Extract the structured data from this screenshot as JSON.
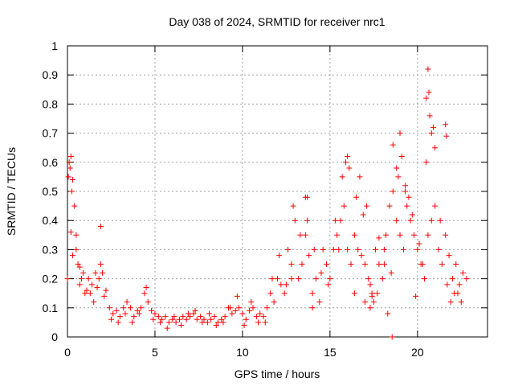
{
  "chart_data": {
    "type": "scatter",
    "title": "Day 038 of 2024, SRMTID for receiver nrc1",
    "xlabel": "GPS time / hours",
    "ylabel": "SRMTID / TECUs",
    "xlim": [
      0,
      24
    ],
    "ylim": [
      0,
      1
    ],
    "xticks": [
      0,
      5,
      10,
      15,
      20
    ],
    "xtick_labels": [
      "0",
      "5",
      "10",
      "15",
      "20"
    ],
    "yticks": [
      0,
      0.1,
      0.2,
      0.3,
      0.4,
      0.5,
      0.6,
      0.7,
      0.8,
      0.9,
      1
    ],
    "ytick_labels": [
      "0",
      "0.1",
      "0.2",
      "0.3",
      "0.4",
      "0.5",
      "0.6",
      "0.7",
      "0.8",
      "0.9",
      "1"
    ],
    "grid": true,
    "marker": "plus",
    "marker_color": "#ff0000",
    "series": [
      {
        "name": "SRMTID",
        "x": [
          0.0,
          0.1,
          0.2,
          0.3,
          0.4,
          0.5,
          0.6,
          0.7,
          0.8,
          0.9,
          1.0,
          1.2,
          1.4,
          1.6,
          1.8,
          2.0,
          2.2,
          2.4,
          2.6,
          2.8,
          3.0,
          3.2,
          3.4,
          3.6,
          3.8,
          4.0,
          4.2,
          4.4,
          4.6,
          4.8,
          5.0,
          5.2,
          5.4,
          5.6,
          5.8,
          6.0,
          6.2,
          6.4,
          6.6,
          6.8,
          7.0,
          7.2,
          7.4,
          7.6,
          7.8,
          8.0,
          8.2,
          8.4,
          8.6,
          8.8,
          9.0,
          9.2,
          9.4,
          9.6,
          9.8,
          10.0,
          10.2,
          10.4,
          10.6,
          10.8,
          11.0,
          11.2,
          11.4,
          11.6,
          11.8,
          12.0,
          12.2,
          12.4,
          12.6,
          12.8,
          13.0,
          13.2,
          13.4,
          13.6,
          13.8,
          14.0,
          14.2,
          14.4,
          14.6,
          14.8,
          15.0,
          15.2,
          15.4,
          15.6,
          15.8,
          16.0,
          16.2,
          16.4,
          16.6,
          16.8,
          17.0,
          17.2,
          17.4,
          17.6,
          17.8,
          18.0,
          18.2,
          18.4,
          18.6,
          18.8,
          19.0,
          19.2,
          19.4,
          19.6,
          19.8,
          20.0,
          20.2,
          20.4,
          20.6,
          20.8,
          21.0,
          21.2,
          21.4,
          21.6,
          21.8,
          22.0,
          22.2,
          22.4,
          22.6,
          22.8,
          0.05,
          0.15,
          0.25,
          0.2,
          0.3,
          0.5,
          0.7,
          1.1,
          1.3,
          1.5,
          1.7,
          1.9,
          2.1,
          2.5,
          2.9,
          3.3,
          3.7,
          4.1,
          4.5,
          4.9,
          5.3,
          5.7,
          6.1,
          6.5,
          6.9,
          7.3,
          7.7,
          8.1,
          8.5,
          8.9,
          9.3,
          9.7,
          10.1,
          10.5,
          10.9,
          11.3,
          11.7,
          12.1,
          12.5,
          12.9,
          13.3,
          13.7,
          14.1,
          14.5,
          14.9,
          15.3,
          15.7,
          16.1,
          16.5,
          16.9,
          17.3,
          17.7,
          18.1,
          18.5,
          18.9,
          19.3,
          19.7,
          20.1,
          20.5,
          20.9,
          21.3,
          21.7,
          22.1,
          22.5,
          1.9,
          13.6,
          13.7,
          15.9,
          16.0,
          16.7,
          17.1,
          17.8,
          18.1,
          18.6,
          18.8,
          19.0,
          19.1,
          19.3,
          19.5,
          20.5,
          20.6,
          20.65,
          20.7,
          20.8,
          21.0,
          21.6,
          21.65,
          12.8,
          14.0,
          15.5,
          16.4,
          17.5,
          18.3,
          19.9,
          20.3,
          21.9,
          22.3,
          18.55,
          17.0,
          17.3,
          17.4
        ],
        "y": [
          0.2,
          0.6,
          0.62,
          0.54,
          0.45,
          0.35,
          0.25,
          0.18,
          0.2,
          0.22,
          0.15,
          0.2,
          0.18,
          0.22,
          0.2,
          0.22,
          0.16,
          0.1,
          0.08,
          0.09,
          0.07,
          0.1,
          0.12,
          0.1,
          0.07,
          0.09,
          0.1,
          0.15,
          0.12,
          0.09,
          0.08,
          0.07,
          0.06,
          0.07,
          0.05,
          0.06,
          0.05,
          0.06,
          0.07,
          0.06,
          0.07,
          0.08,
          0.06,
          0.07,
          0.06,
          0.05,
          0.06,
          0.07,
          0.05,
          0.06,
          0.07,
          0.1,
          0.08,
          0.09,
          0.1,
          0.08,
          0.06,
          0.09,
          0.1,
          0.07,
          0.08,
          0.07,
          0.1,
          0.15,
          0.12,
          0.2,
          0.18,
          0.15,
          0.3,
          0.25,
          0.4,
          0.2,
          0.25,
          0.35,
          0.28,
          0.15,
          0.2,
          0.12,
          0.3,
          0.25,
          0.2,
          0.3,
          0.35,
          0.4,
          0.45,
          0.3,
          0.25,
          0.35,
          0.3,
          0.28,
          0.25,
          0.2,
          0.15,
          0.3,
          0.25,
          0.2,
          0.35,
          0.45,
          0.5,
          0.4,
          0.35,
          0.3,
          0.45,
          0.4,
          0.35,
          0.3,
          0.25,
          0.2,
          0.35,
          0.4,
          0.45,
          0.3,
          0.25,
          0.35,
          0.28,
          0.2,
          0.25,
          0.18,
          0.22,
          0.2,
          0.55,
          0.58,
          0.5,
          0.36,
          0.28,
          0.3,
          0.24,
          0.16,
          0.15,
          0.12,
          0.17,
          0.25,
          0.14,
          0.06,
          0.05,
          0.08,
          0.05,
          0.08,
          0.17,
          0.06,
          0.05,
          0.03,
          0.07,
          0.04,
          0.08,
          0.09,
          0.05,
          0.08,
          0.04,
          0.05,
          0.1,
          0.14,
          0.04,
          0.12,
          0.05,
          0.05,
          0.2,
          0.28,
          0.18,
          0.45,
          0.35,
          0.48,
          0.3,
          0.22,
          0.18,
          0.4,
          0.55,
          0.58,
          0.48,
          0.42,
          0.18,
          0.15,
          0.3,
          0.22,
          0.55,
          0.5,
          0.42,
          0.32,
          0.6,
          0.72,
          0.4,
          0.18,
          0.15,
          0.12,
          0.38,
          0.48,
          0.4,
          0.6,
          0.62,
          0.55,
          0.45,
          0.34,
          0.25,
          0.66,
          0.58,
          0.7,
          0.62,
          0.52,
          0.48,
          0.82,
          0.92,
          0.84,
          0.76,
          0.7,
          0.65,
          0.73,
          0.69,
          0.2,
          0.1,
          0.3,
          0.15,
          0.12,
          0.08,
          0.14,
          0.25,
          0.12,
          0.15,
          0.0,
          0.12,
          0.1,
          0.14
        ]
      }
    ]
  }
}
